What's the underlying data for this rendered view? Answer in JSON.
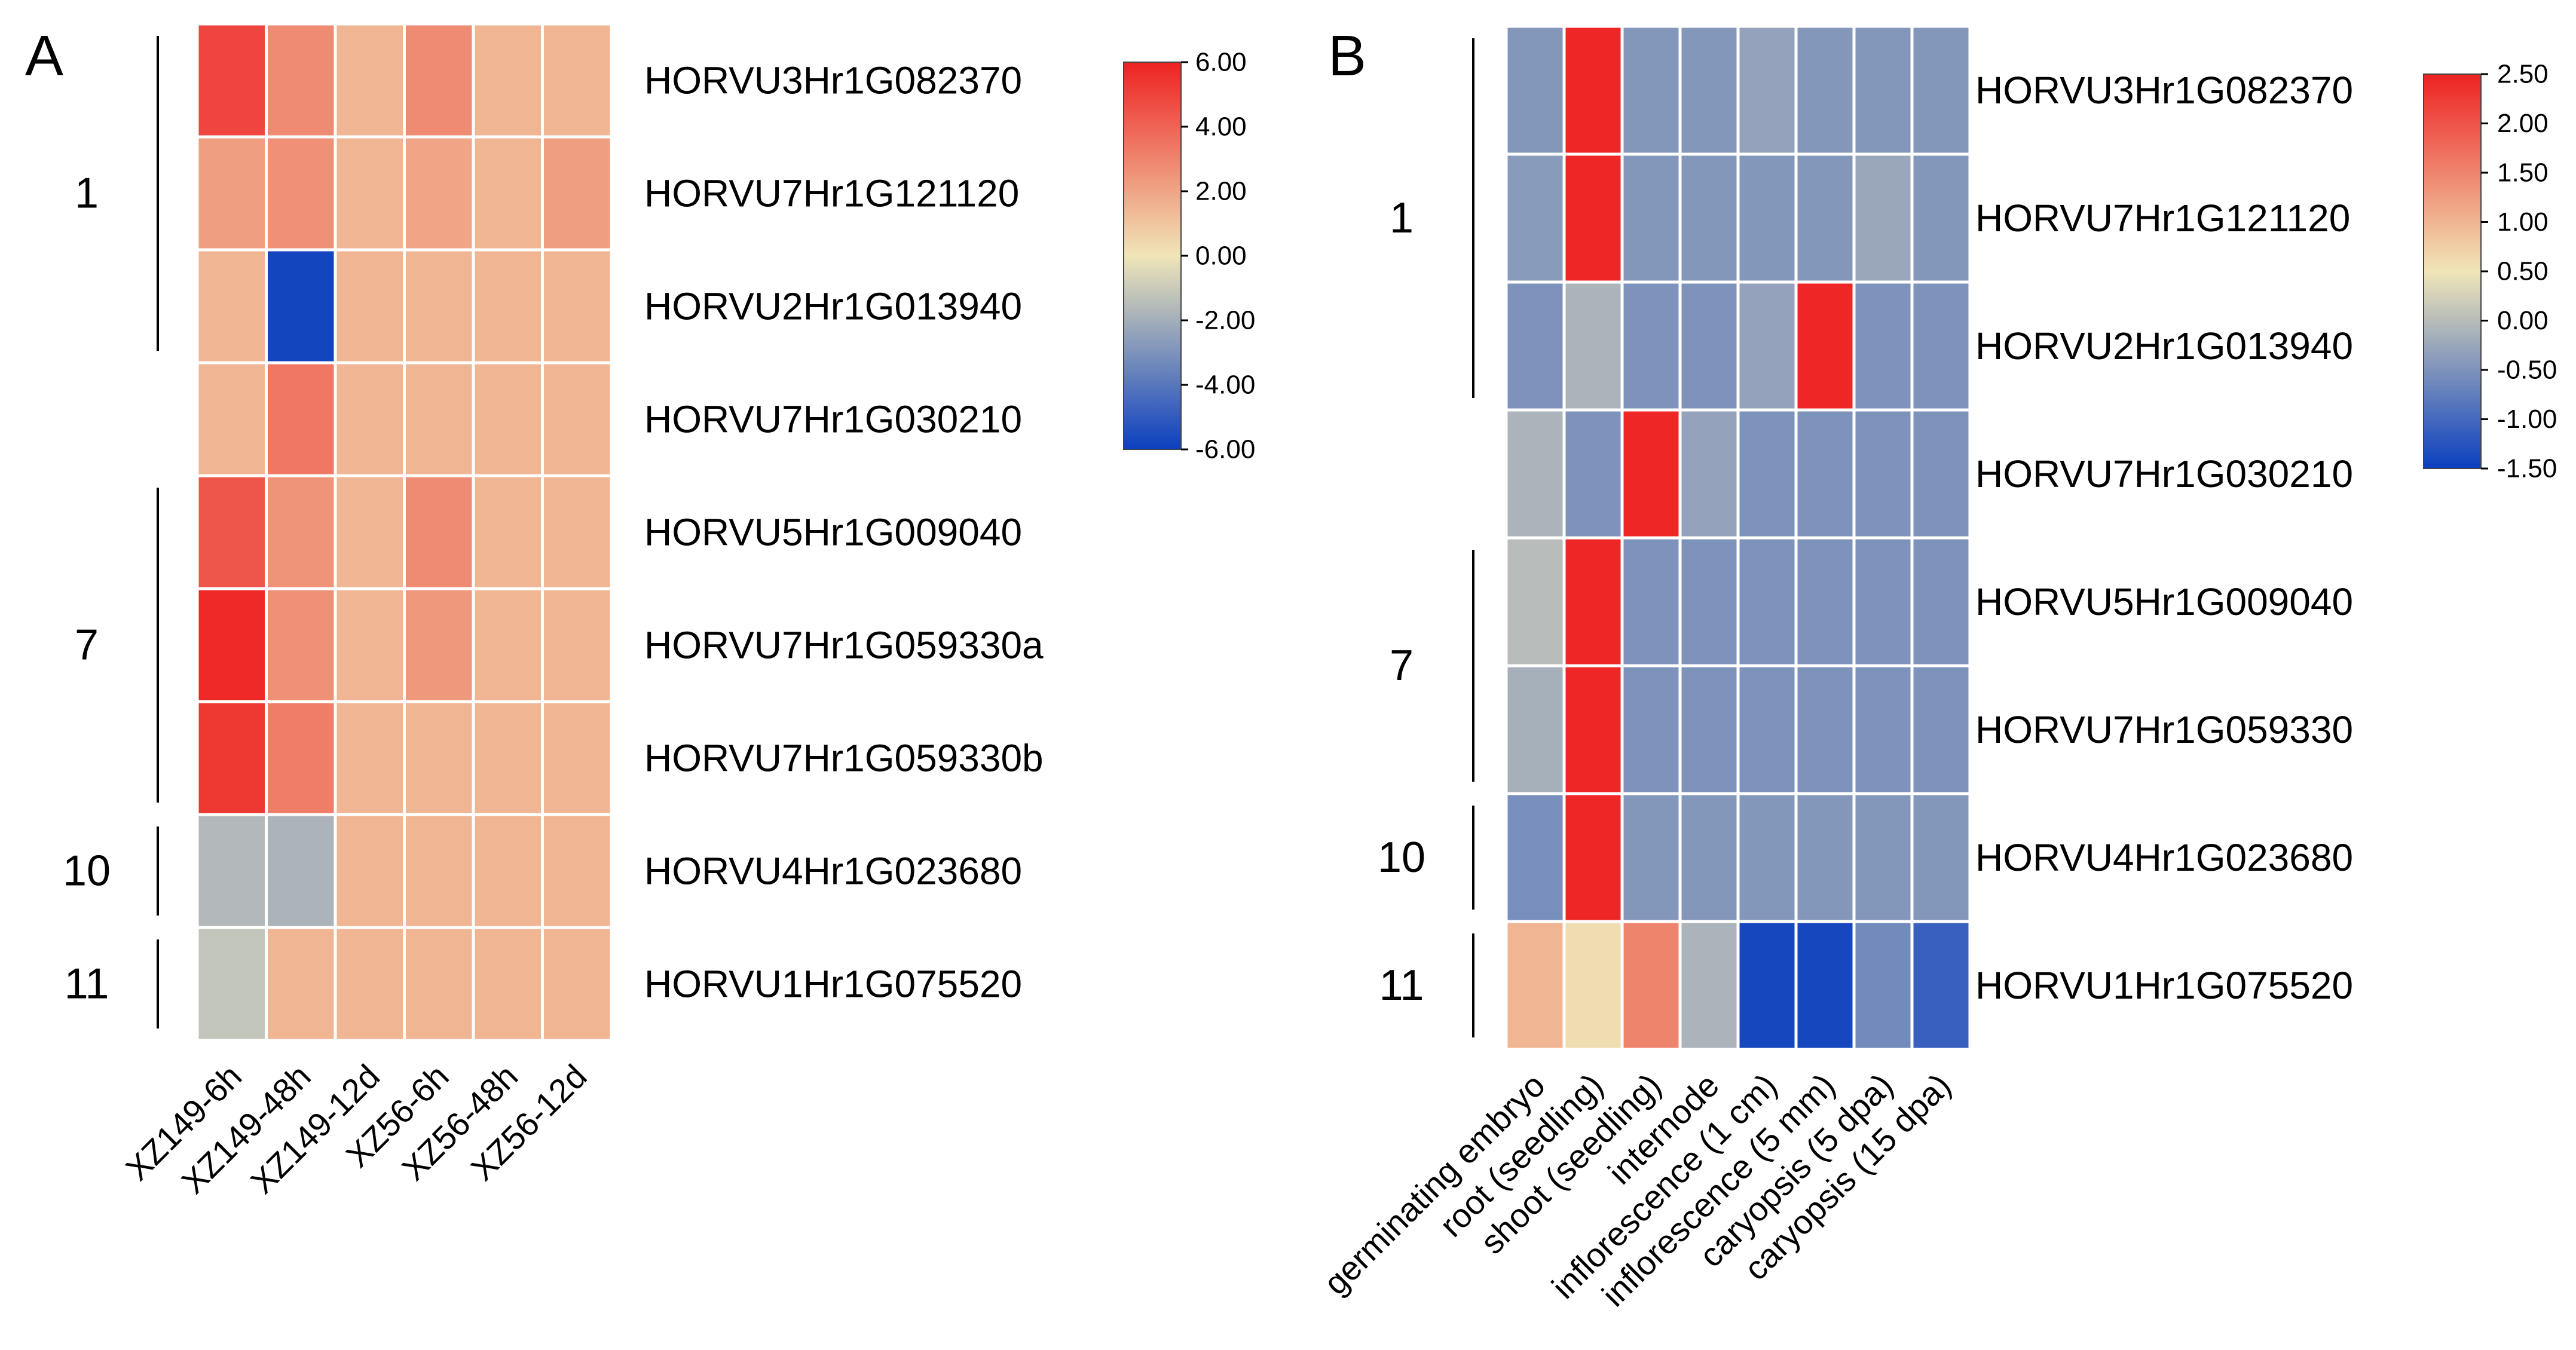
{
  "colors": {
    "low": "#0b3fbf",
    "mid": "#f0e6b8",
    "high": "#ee2222",
    "cell_border": "#ffffff",
    "text": "#000000"
  },
  "chart_data": [
    {
      "type": "heatmap",
      "panel": "A",
      "columns": [
        "XZ149-6h",
        "XZ149-48h",
        "XZ149-12d",
        "XZ56-6h",
        "XZ56-48h",
        "XZ56-12d"
      ],
      "rows": [
        "HORVU3Hr1G082370",
        "HORVU7Hr1G121120",
        "HORVU2Hr1G013940",
        "HORVU7Hr1G030210",
        "HORVU5Hr1G009040",
        "HORVU7Hr1G059330a",
        "HORVU7Hr1G059330b",
        "HORVU4Hr1G023680",
        "HORVU1Hr1G075520"
      ],
      "values": [
        [
          4.9,
          2.8,
          1.5,
          2.8,
          1.5,
          1.5
        ],
        [
          2.2,
          2.6,
          1.5,
          2.0,
          1.5,
          2.2
        ],
        [
          1.5,
          -5.8,
          1.5,
          1.5,
          1.5,
          1.5
        ],
        [
          1.5,
          3.4,
          1.5,
          1.5,
          1.5,
          1.5
        ],
        [
          4.4,
          2.5,
          1.5,
          2.8,
          1.5,
          1.5
        ],
        [
          5.8,
          2.6,
          1.5,
          2.4,
          1.5,
          1.5
        ],
        [
          5.3,
          3.2,
          1.5,
          1.5,
          1.5,
          1.5
        ],
        [
          -1.6,
          -1.8,
          1.5,
          1.5,
          1.5,
          1.5
        ],
        [
          -1.2,
          1.5,
          1.5,
          1.5,
          1.5,
          1.5
        ]
      ],
      "colorbar": {
        "min": -6,
        "max": 6,
        "ticks": [
          "6.00",
          "4.00",
          "2.00",
          "0.00",
          "-2.00",
          "-4.00",
          "-6.00"
        ]
      },
      "groups": [
        {
          "label": "1",
          "from_row": 0,
          "to_row": 2
        },
        {
          "label": "7",
          "from_row": 4,
          "to_row": 6
        },
        {
          "label": "10",
          "from_row": 7,
          "to_row": 7
        },
        {
          "label": "11",
          "from_row": 8,
          "to_row": 8
        }
      ]
    },
    {
      "type": "heatmap",
      "panel": "B",
      "columns": [
        "germinating embryo",
        "root (seedling)",
        "shoot (seedling)",
        "internode",
        "inflorescence (1 cm)",
        "inflorescence (5 mm)",
        "caryopsis (5 dpa)",
        "caryopsis (15 dpa)"
      ],
      "rows": [
        "HORVU3Hr1G082370",
        "HORVU7Hr1G121120",
        "HORVU2Hr1G013940",
        "HORVU7Hr1G030210",
        "HORVU5Hr1G009040",
        "HORVU7Hr1G059330",
        "HORVU4Hr1G023680",
        "HORVU1Hr1G075520"
      ],
      "values": [
        [
          -0.45,
          2.45,
          -0.45,
          -0.45,
          -0.3,
          -0.45,
          -0.45,
          -0.45
        ],
        [
          -0.4,
          2.45,
          -0.45,
          -0.45,
          -0.45,
          -0.45,
          -0.25,
          -0.45
        ],
        [
          -0.5,
          -0.1,
          -0.5,
          -0.5,
          -0.3,
          2.45,
          -0.5,
          -0.5
        ],
        [
          -0.1,
          -0.5,
          2.45,
          -0.3,
          -0.5,
          -0.5,
          -0.5,
          -0.5
        ],
        [
          0.0,
          2.45,
          -0.5,
          -0.5,
          -0.5,
          -0.5,
          -0.5,
          -0.5
        ],
        [
          -0.15,
          2.45,
          -0.5,
          -0.5,
          -0.5,
          -0.5,
          -0.5,
          -0.5
        ],
        [
          -0.55,
          2.45,
          -0.45,
          -0.45,
          -0.45,
          -0.45,
          -0.45,
          -0.45
        ],
        [
          1.0,
          0.6,
          1.5,
          -0.1,
          -1.4,
          -1.4,
          -0.6,
          -1.1
        ]
      ],
      "colorbar": {
        "min": -1.5,
        "max": 2.5,
        "ticks": [
          "2.50",
          "2.00",
          "1.50",
          "1.00",
          "0.50",
          "0.00",
          "-0.50",
          "-1.00",
          "-1.50"
        ]
      },
      "groups": [
        {
          "label": "1",
          "from_row": 0,
          "to_row": 2
        },
        {
          "label": "7",
          "from_row": 4,
          "to_row": 5
        },
        {
          "label": "10",
          "from_row": 6,
          "to_row": 6
        },
        {
          "label": "11",
          "from_row": 7,
          "to_row": 7
        }
      ]
    }
  ]
}
